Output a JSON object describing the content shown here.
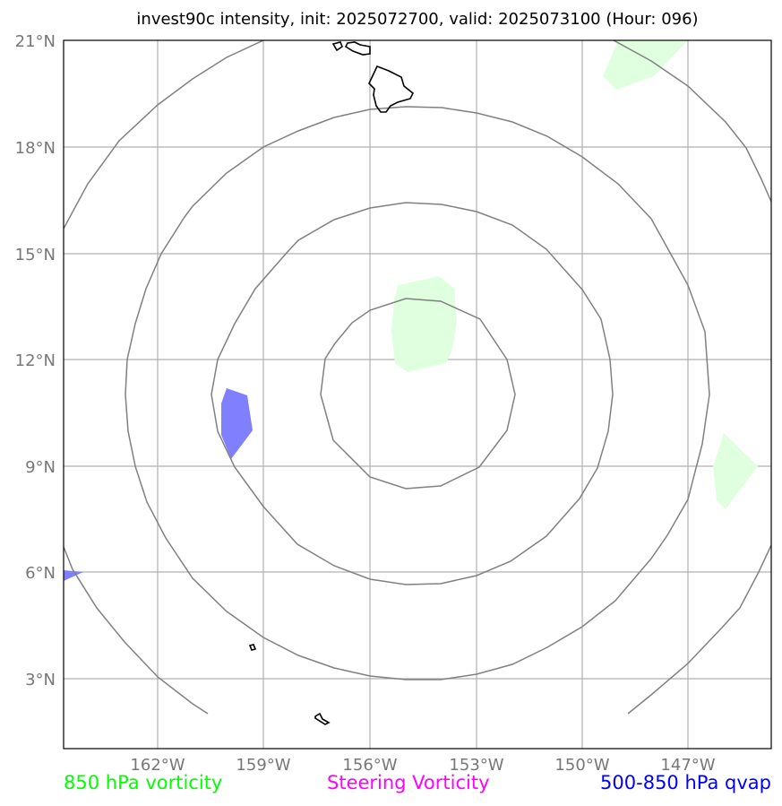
{
  "title": "invest90c intensity, init: 2025072700, valid: 2025073100 (Hour: 096)",
  "lon_ticks": [
    "162°W",
    "159°W",
    "156°W",
    "153°W",
    "150°W",
    "147°W"
  ],
  "lat_ticks": [
    "21°N",
    "18°N",
    "15°N",
    "12°N",
    "9°N",
    "6°N",
    "3°N"
  ],
  "legend": [
    {
      "label": "850 hPa vorticity",
      "color": "#00ff00"
    },
    {
      "label": "Steering Vorticity",
      "color": "#ff00ff"
    },
    {
      "label": "500-850 hPa qvap",
      "color": "#0000ff"
    }
  ],
  "map": {
    "lon_range": [
      -164.7,
      -144.7
    ],
    "lat_range": [
      1.0,
      21.0
    ],
    "range_ring_color": "#808080",
    "gridline_color": "#b0b0b0",
    "vorticity_fill": "#dfffdf",
    "qvap_fill": "#8080ff",
    "coastline_color": "#000000"
  }
}
